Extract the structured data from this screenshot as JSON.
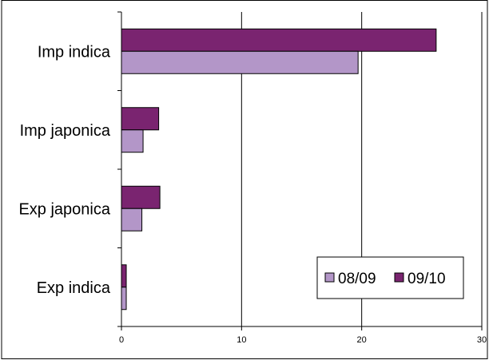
{
  "chart_data": {
    "type": "bar",
    "orientation": "horizontal",
    "categories": [
      "Imp indica",
      "Imp japonica",
      "Exp japonica",
      "Exp indica"
    ],
    "series": [
      {
        "name": "08/09",
        "values": [
          19.7,
          1.8,
          1.7,
          0.4
        ],
        "color": "#b396c8"
      },
      {
        "name": "09/10",
        "values": [
          26.2,
          3.1,
          3.2,
          0.4
        ],
        "color": "#7a2470"
      }
    ],
    "xlim": [
      0,
      30
    ],
    "x_ticks": [
      "0",
      "10",
      "20",
      "30"
    ],
    "title": "",
    "xlabel": "",
    "ylabel": "",
    "grid": "vertical",
    "legend_position": "bottom-right"
  }
}
